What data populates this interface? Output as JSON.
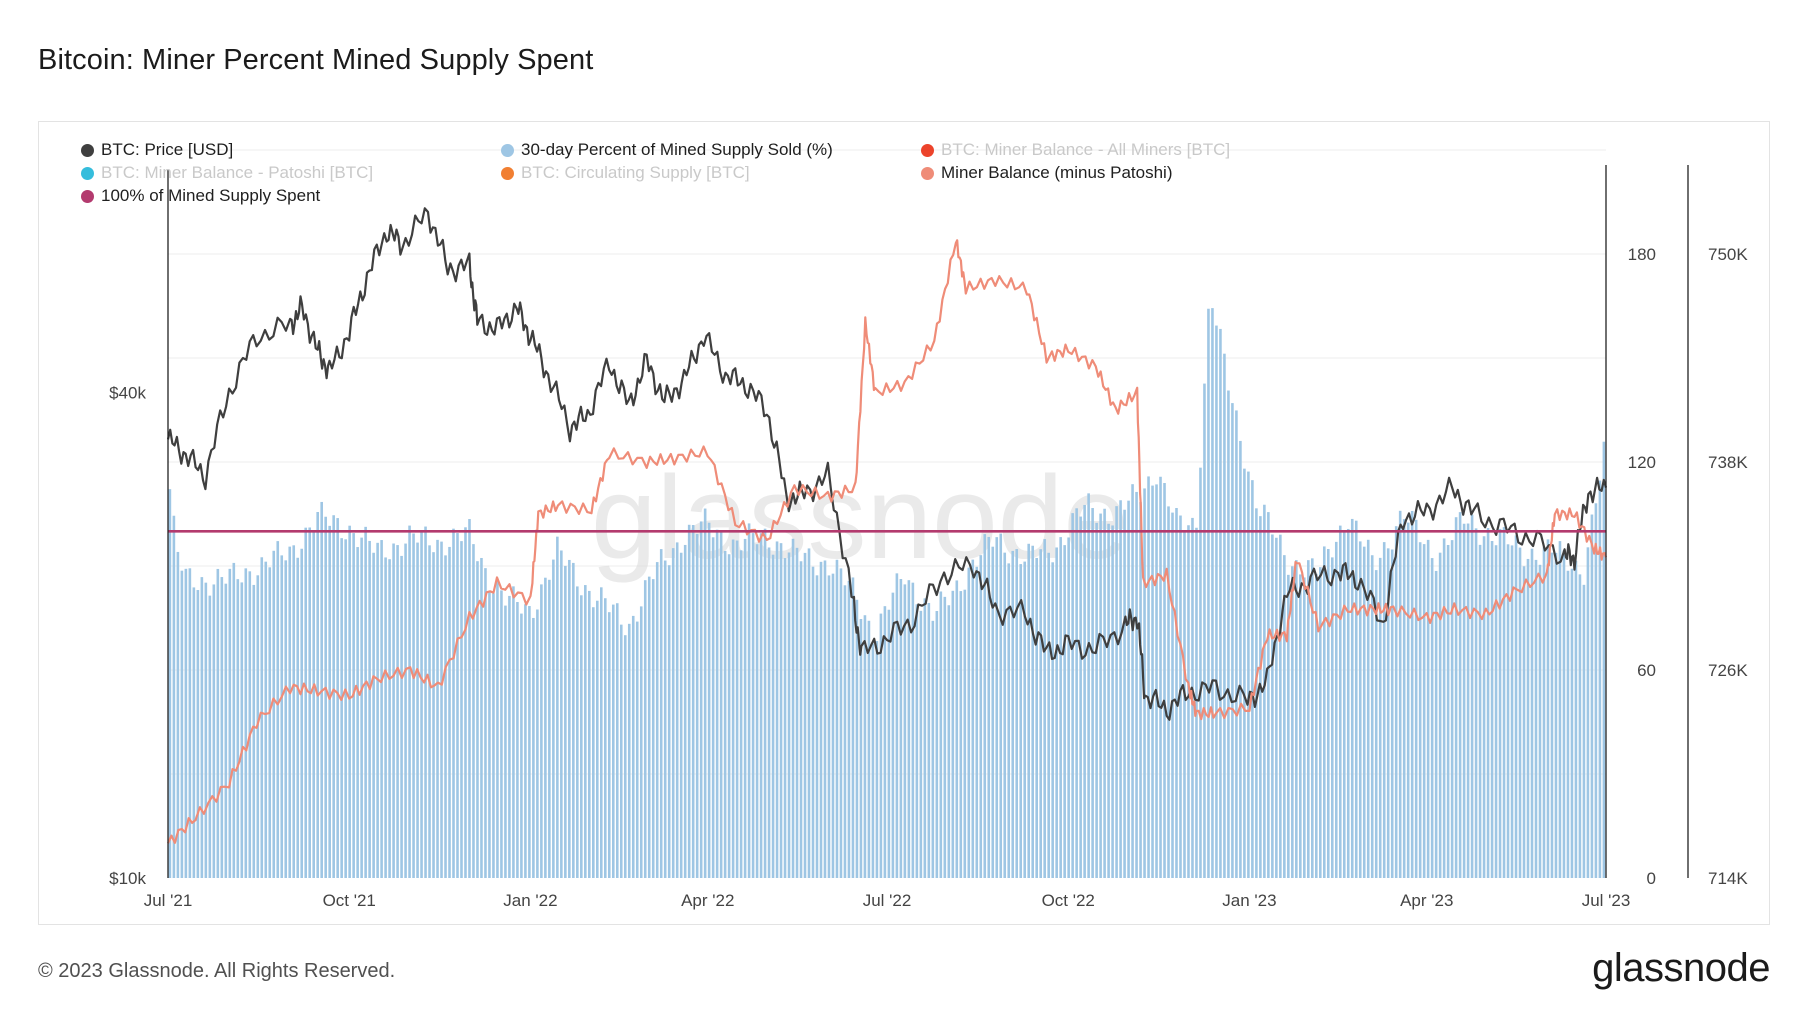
{
  "title": "Bitcoin: Miner Percent Mined Supply Spent",
  "footer": {
    "copyright": "© 2023 Glassnode. All Rights Reserved.",
    "logo": "glassnode"
  },
  "watermark": "glassnode",
  "legend": [
    {
      "label": "BTC: Price [USD]",
      "color": "#3f3f3f",
      "enabled": true
    },
    {
      "label": "30-day Percent of Mined Supply Sold (%)",
      "color": "#9ec6e4",
      "enabled": true
    },
    {
      "label": "BTC: Miner Balance - All Miners [BTC]",
      "color": "#ea2f14",
      "enabled": false
    },
    {
      "label": "BTC: Miner Balance - Patoshi [BTC]",
      "color": "#1fb6d8",
      "enabled": false
    },
    {
      "label": "BTC: Circulating Supply [BTC]",
      "color": "#f0711c",
      "enabled": false
    },
    {
      "label": "Miner Balance (minus Patoshi)",
      "color": "#ef8c78",
      "enabled": true
    },
    {
      "label": "100% of Mined Supply Spent",
      "color": "#b33a6e",
      "enabled": true
    }
  ],
  "chart_data": {
    "type": "line",
    "x_tick_labels": [
      "Jul '21",
      "Oct '21",
      "Jan '22",
      "Apr '22",
      "Jul '22",
      "Oct '22",
      "Jan '23",
      "Apr '23",
      "Jul '23"
    ],
    "x_range": [
      "2021-07-01",
      "2023-07-01"
    ],
    "y_left": {
      "scale": "log",
      "range": [
        10000,
        80000
      ],
      "tick_labels": [
        "$10k",
        "$40k"
      ],
      "tick_values": [
        10000,
        40000
      ]
    },
    "y_right1": {
      "range": [
        0,
        210
      ],
      "tick_labels": [
        "0",
        "60",
        "120",
        "180"
      ],
      "tick_values": [
        0,
        60,
        120,
        180
      ]
    },
    "y_right2": {
      "range": [
        714000,
        756000
      ],
      "tick_labels": [
        "714K",
        "726K",
        "738K",
        "750K"
      ],
      "tick_values": [
        714000,
        726000,
        738000,
        750000
      ]
    },
    "series": [
      {
        "name": "BTC: Price [USD]",
        "axis": "y_left",
        "color": "#3f3f3f",
        "kind": "line",
        "x": [
          "2021-07-01",
          "2021-07-10",
          "2021-07-20",
          "2021-08-01",
          "2021-08-15",
          "2021-09-01",
          "2021-09-07",
          "2021-09-15",
          "2021-09-21",
          "2021-10-01",
          "2021-10-10",
          "2021-10-20",
          "2021-10-28",
          "2021-11-10",
          "2021-11-20",
          "2021-12-01",
          "2021-12-05",
          "2021-12-15",
          "2021-12-25",
          "2022-01-01",
          "2022-01-10",
          "2022-01-21",
          "2022-01-30",
          "2022-02-10",
          "2022-02-20",
          "2022-03-01",
          "2022-03-10",
          "2022-03-20",
          "2022-03-30",
          "2022-04-10",
          "2022-04-20",
          "2022-05-01",
          "2022-05-11",
          "2022-05-20",
          "2022-06-01",
          "2022-06-13",
          "2022-06-18",
          "2022-07-01",
          "2022-07-15",
          "2022-07-30",
          "2022-08-14",
          "2022-08-25",
          "2022-09-09",
          "2022-09-20",
          "2022-10-01",
          "2022-10-15",
          "2022-10-30",
          "2022-11-05",
          "2022-11-09",
          "2022-11-20",
          "2022-12-01",
          "2022-12-15",
          "2022-12-31",
          "2023-01-10",
          "2023-01-20",
          "2023-02-01",
          "2023-02-15",
          "2023-02-25",
          "2023-03-10",
          "2023-03-20",
          "2023-04-01",
          "2023-04-14",
          "2023-04-25",
          "2023-05-10",
          "2023-05-25",
          "2023-06-10",
          "2023-06-15",
          "2023-06-22",
          "2023-07-01"
        ],
        "y": [
          35000,
          33500,
          31500,
          40000,
          47000,
          48500,
          51000,
          45000,
          42500,
          47500,
          55500,
          63500,
          61000,
          67000,
          57000,
          57500,
          49000,
          48000,
          51000,
          47000,
          42000,
          36200,
          37500,
          43500,
          38500,
          43800,
          39000,
          41500,
          47100,
          42000,
          41000,
          38000,
          29500,
          30000,
          31500,
          22500,
          19000,
          19800,
          21000,
          23800,
          24500,
          21500,
          21300,
          19000,
          19500,
          19200,
          20600,
          21100,
          16800,
          16200,
          17000,
          17200,
          16600,
          17500,
          22500,
          23400,
          24000,
          23500,
          20600,
          28000,
          28500,
          30400,
          28300,
          27200,
          26300,
          25100,
          25000,
          30000,
          30500
        ]
      },
      {
        "name": "30-day Percent of Mined Supply Sold (%)",
        "axis": "y_right1",
        "color": "#9ec6e4",
        "kind": "bar",
        "x": [
          "2021-07-01",
          "2021-07-05",
          "2021-07-10",
          "2021-08-01",
          "2021-09-01",
          "2021-09-15",
          "2021-10-01",
          "2021-10-15",
          "2021-11-01",
          "2021-11-15",
          "2021-12-01",
          "2021-12-10",
          "2021-12-20",
          "2022-01-01",
          "2022-01-15",
          "2022-02-01",
          "2022-02-20",
          "2022-03-05",
          "2022-03-20",
          "2022-04-01",
          "2022-04-15",
          "2022-05-01",
          "2022-05-15",
          "2022-06-01",
          "2022-06-15",
          "2022-06-25",
          "2022-07-10",
          "2022-07-25",
          "2022-08-10",
          "2022-08-25",
          "2022-09-10",
          "2022-09-25",
          "2022-10-10",
          "2022-10-25",
          "2022-11-05",
          "2022-11-15",
          "2022-11-25",
          "2022-12-05",
          "2022-12-12",
          "2022-12-22",
          "2023-01-05",
          "2023-01-20",
          "2023-02-05",
          "2023-02-20",
          "2023-03-05",
          "2023-03-20",
          "2023-04-05",
          "2023-04-20",
          "2023-05-05",
          "2023-05-20",
          "2023-06-05",
          "2023-06-20",
          "2023-07-01"
        ],
        "y": [
          118,
          95,
          86,
          86,
          94,
          104,
          101,
          94,
          98,
          97,
          99,
          88,
          80,
          77,
          94,
          82,
          73,
          88,
          99,
          102,
          96,
          99,
          93,
          91,
          82,
          70,
          88,
          75,
          88,
          98,
          92,
          96,
          107,
          105,
          110,
          118,
          102,
          102,
          170,
          140,
          108,
          92,
          88,
          105,
          90,
          105,
          93,
          103,
          99,
          94,
          94,
          89,
          125
        ]
      },
      {
        "name": "Miner Balance (minus Patoshi)",
        "axis": "y_right2",
        "color": "#ef8c78",
        "kind": "line",
        "x": [
          "2021-07-01",
          "2021-07-15",
          "2021-08-01",
          "2021-08-15",
          "2021-09-01",
          "2021-09-15",
          "2021-10-01",
          "2021-10-15",
          "2021-11-01",
          "2021-11-15",
          "2021-12-01",
          "2021-12-15",
          "2022-01-01",
          "2022-01-05",
          "2022-01-15",
          "2022-02-01",
          "2022-02-10",
          "2022-03-01",
          "2022-03-15",
          "2022-04-01",
          "2022-04-15",
          "2022-05-01",
          "2022-05-15",
          "2022-06-01",
          "2022-06-15",
          "2022-06-20",
          "2022-06-25",
          "2022-07-10",
          "2022-07-25",
          "2022-08-05",
          "2022-08-10",
          "2022-08-25",
          "2022-09-10",
          "2022-09-20",
          "2022-10-01",
          "2022-10-15",
          "2022-10-25",
          "2022-11-05",
          "2022-11-08",
          "2022-11-20",
          "2022-12-01",
          "2022-12-05",
          "2022-12-15",
          "2023-01-01",
          "2023-01-10",
          "2023-01-20",
          "2023-01-25",
          "2023-02-05",
          "2023-02-20",
          "2023-03-05",
          "2023-03-15",
          "2023-04-01",
          "2023-04-15",
          "2023-05-01",
          "2023-05-15",
          "2023-06-01",
          "2023-06-05",
          "2023-06-15",
          "2023-06-25",
          "2023-07-01"
        ],
        "y": [
          716000,
          717500,
          719500,
          723000,
          725000,
          724800,
          724500,
          725500,
          726000,
          725000,
          729000,
          731000,
          730000,
          735000,
          735500,
          735200,
          738500,
          738000,
          738200,
          738600,
          734500,
          733500,
          736500,
          736000,
          736500,
          746000,
          742000,
          742500,
          745000,
          750800,
          748000,
          748500,
          748000,
          744000,
          744500,
          743500,
          741000,
          742000,
          731000,
          731500,
          725000,
          723500,
          723500,
          723800,
          728000,
          728000,
          732500,
          728500,
          729500,
          729500,
          729500,
          729000,
          729500,
          729200,
          730500,
          731500,
          735000,
          735000,
          733000,
          732500
        ]
      },
      {
        "name": "100% of Mined Supply Spent",
        "axis": "y_right1",
        "color": "#b33a6e",
        "kind": "line",
        "x": [
          "2021-07-01",
          "2023-07-01"
        ],
        "y": [
          100,
          100
        ]
      }
    ]
  }
}
